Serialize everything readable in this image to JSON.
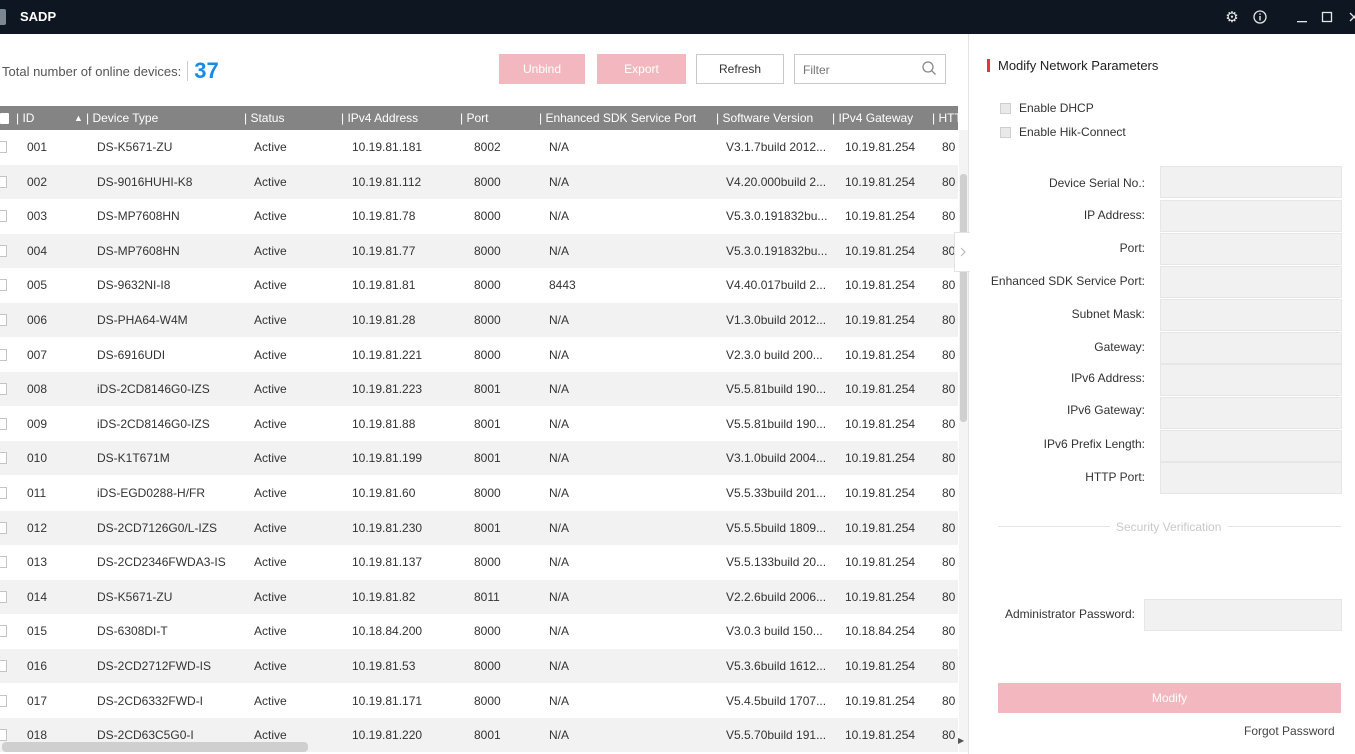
{
  "app": {
    "title": "SADP"
  },
  "toolbar": {
    "total_label": "Total number of online devices:",
    "total_count": "37",
    "unbind_label": "Unbind",
    "export_label": "Export",
    "refresh_label": "Refresh",
    "filter_placeholder": "Filter"
  },
  "table": {
    "headers": {
      "id": "| ID",
      "sort": "▲",
      "device_type": "| Device Type",
      "status": "| Status",
      "ipv4": "| IPv4 Address",
      "port": "| Port",
      "sdk_port": "| Enhanced SDK Service Port",
      "software": "| Software Version",
      "gateway": "| IPv4 Gateway",
      "http": "| HTT"
    },
    "rows": [
      [
        "001",
        "DS-K5671-ZU",
        "Active",
        "10.19.81.181",
        "8002",
        "N/A",
        "V3.1.7build 2012...",
        "10.19.81.254",
        "80"
      ],
      [
        "002",
        "DS-9016HUHI-K8",
        "Active",
        "10.19.81.112",
        "8000",
        "N/A",
        "V4.20.000build 2...",
        "10.19.81.254",
        "80"
      ],
      [
        "003",
        "DS-MP7608HN",
        "Active",
        "10.19.81.78",
        "8000",
        "N/A",
        "V5.3.0.191832bu...",
        "10.19.81.254",
        "80"
      ],
      [
        "004",
        "DS-MP7608HN",
        "Active",
        "10.19.81.77",
        "8000",
        "N/A",
        "V5.3.0.191832bu...",
        "10.19.81.254",
        "80"
      ],
      [
        "005",
        "DS-9632NI-I8",
        "Active",
        "10.19.81.81",
        "8000",
        "8443",
        "V4.40.017build 2...",
        "10.19.81.254",
        "80"
      ],
      [
        "006",
        "DS-PHA64-W4M",
        "Active",
        "10.19.81.28",
        "8000",
        "N/A",
        "V1.3.0build 2012...",
        "10.19.81.254",
        "80"
      ],
      [
        "007",
        "DS-6916UDI",
        "Active",
        "10.19.81.221",
        "8000",
        "N/A",
        "V2.3.0 build 200...",
        "10.19.81.254",
        "80"
      ],
      [
        "008",
        "iDS-2CD8146G0-IZS",
        "Active",
        "10.19.81.223",
        "8001",
        "N/A",
        "V5.5.81build 190...",
        "10.19.81.254",
        "80"
      ],
      [
        "009",
        "iDS-2CD8146G0-IZS",
        "Active",
        "10.19.81.88",
        "8001",
        "N/A",
        "V5.5.81build 190...",
        "10.19.81.254",
        "80"
      ],
      [
        "010",
        "DS-K1T671M",
        "Active",
        "10.19.81.199",
        "8001",
        "N/A",
        "V3.1.0build 2004...",
        "10.19.81.254",
        "80"
      ],
      [
        "011",
        "iDS-EGD0288-H/FR",
        "Active",
        "10.19.81.60",
        "8000",
        "N/A",
        "V5.5.33build 201...",
        "10.19.81.254",
        "80"
      ],
      [
        "012",
        "DS-2CD7126G0/L-IZS",
        "Active",
        "10.19.81.230",
        "8001",
        "N/A",
        "V5.5.5build 1809...",
        "10.19.81.254",
        "80"
      ],
      [
        "013",
        "DS-2CD2346FWDA3-IS",
        "Active",
        "10.19.81.137",
        "8000",
        "N/A",
        "V5.5.133build 20...",
        "10.19.81.254",
        "80"
      ],
      [
        "014",
        "DS-K5671-ZU",
        "Active",
        "10.19.81.82",
        "8011",
        "N/A",
        "V2.2.6build 2006...",
        "10.19.81.254",
        "80"
      ],
      [
        "015",
        "DS-6308DI-T",
        "Active",
        "10.18.84.200",
        "8000",
        "N/A",
        "V3.0.3 build 150...",
        "10.18.84.254",
        "80"
      ],
      [
        "016",
        "DS-2CD2712FWD-IS",
        "Active",
        "10.19.81.53",
        "8000",
        "N/A",
        "V5.3.6build 1612...",
        "10.19.81.254",
        "80"
      ],
      [
        "017",
        "DS-2CD6332FWD-I",
        "Active",
        "10.19.81.171",
        "8000",
        "N/A",
        "V5.4.5build 1707...",
        "10.19.81.254",
        "80"
      ],
      [
        "018",
        "DS-2CD63C5G0-I",
        "Active",
        "10.19.81.220",
        "8001",
        "N/A",
        "V5.5.70build 191...",
        "10.19.81.254",
        "80"
      ]
    ]
  },
  "panel": {
    "title": "Modify Network Parameters",
    "enable_dhcp": "Enable DHCP",
    "enable_hik": "Enable Hik-Connect",
    "fields": [
      "Device Serial No.:",
      "IP Address:",
      "Port:",
      "Enhanced SDK Service Port:",
      "Subnet Mask:",
      "Gateway:",
      "IPv6 Address:",
      "IPv6 Gateway:",
      "IPv6 Prefix Length:",
      "HTTP Port:"
    ],
    "security_label": "Security Verification",
    "admin_password_label": "Administrator Password:",
    "modify_label": "Modify",
    "forgot_label": "Forgot Password"
  },
  "colors": {
    "accent_count": "#1b8ae3",
    "disabled_button": "#f3b8bf",
    "title_marker": "#e8323c",
    "titlebar": "#0e1621",
    "table_header": "#848484"
  },
  "icons": [
    "gear-icon",
    "info-icon",
    "minimize-icon",
    "maximize-icon",
    "close-icon",
    "search-icon",
    "chevron-right-icon",
    "scroll-right-arrow-icon"
  ]
}
